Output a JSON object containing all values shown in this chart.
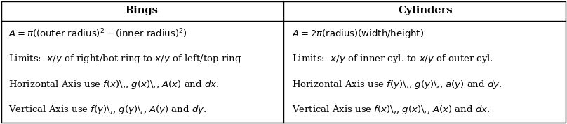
{
  "title_left": "Rings",
  "title_right": "Cylinders",
  "rows_left": [
    "$A = \\pi((\\mathrm{outer\\ radius})^2 - (\\mathrm{inner\\ radius})^2)$",
    "Limits:  $x/y$ of right/bot ring to $x/y$ of left/top ring",
    "Horizontal Axis use $f(x)$\\,, $g(x)$\\,, $A(x)$ and $dx$.",
    "Vertical Axis use $f(y)$\\,, $g(y)$\\,, $A(y)$ and $dy$."
  ],
  "rows_right": [
    "$A = 2\\pi(\\mathrm{radius})(\\mathrm{width/height})$",
    "Limits:  $x/y$ of inner cyl. to $x/y$ of outer cyl.",
    "Horizontal Axis use $f(y)$\\,, $g(y)$\\,, $a(y)$ and $dy$.",
    "Vertical Axis use $f(x)$\\,, $g(x)$\\,, $A(x)$ and $dx$."
  ],
  "bg_color": "#ffffff",
  "border_color": "#000000",
  "text_color": "#000000",
  "title_fontsize": 10.5,
  "body_fontsize": 9.5,
  "fig_width": 8.08,
  "fig_height": 1.78,
  "dpi": 100
}
